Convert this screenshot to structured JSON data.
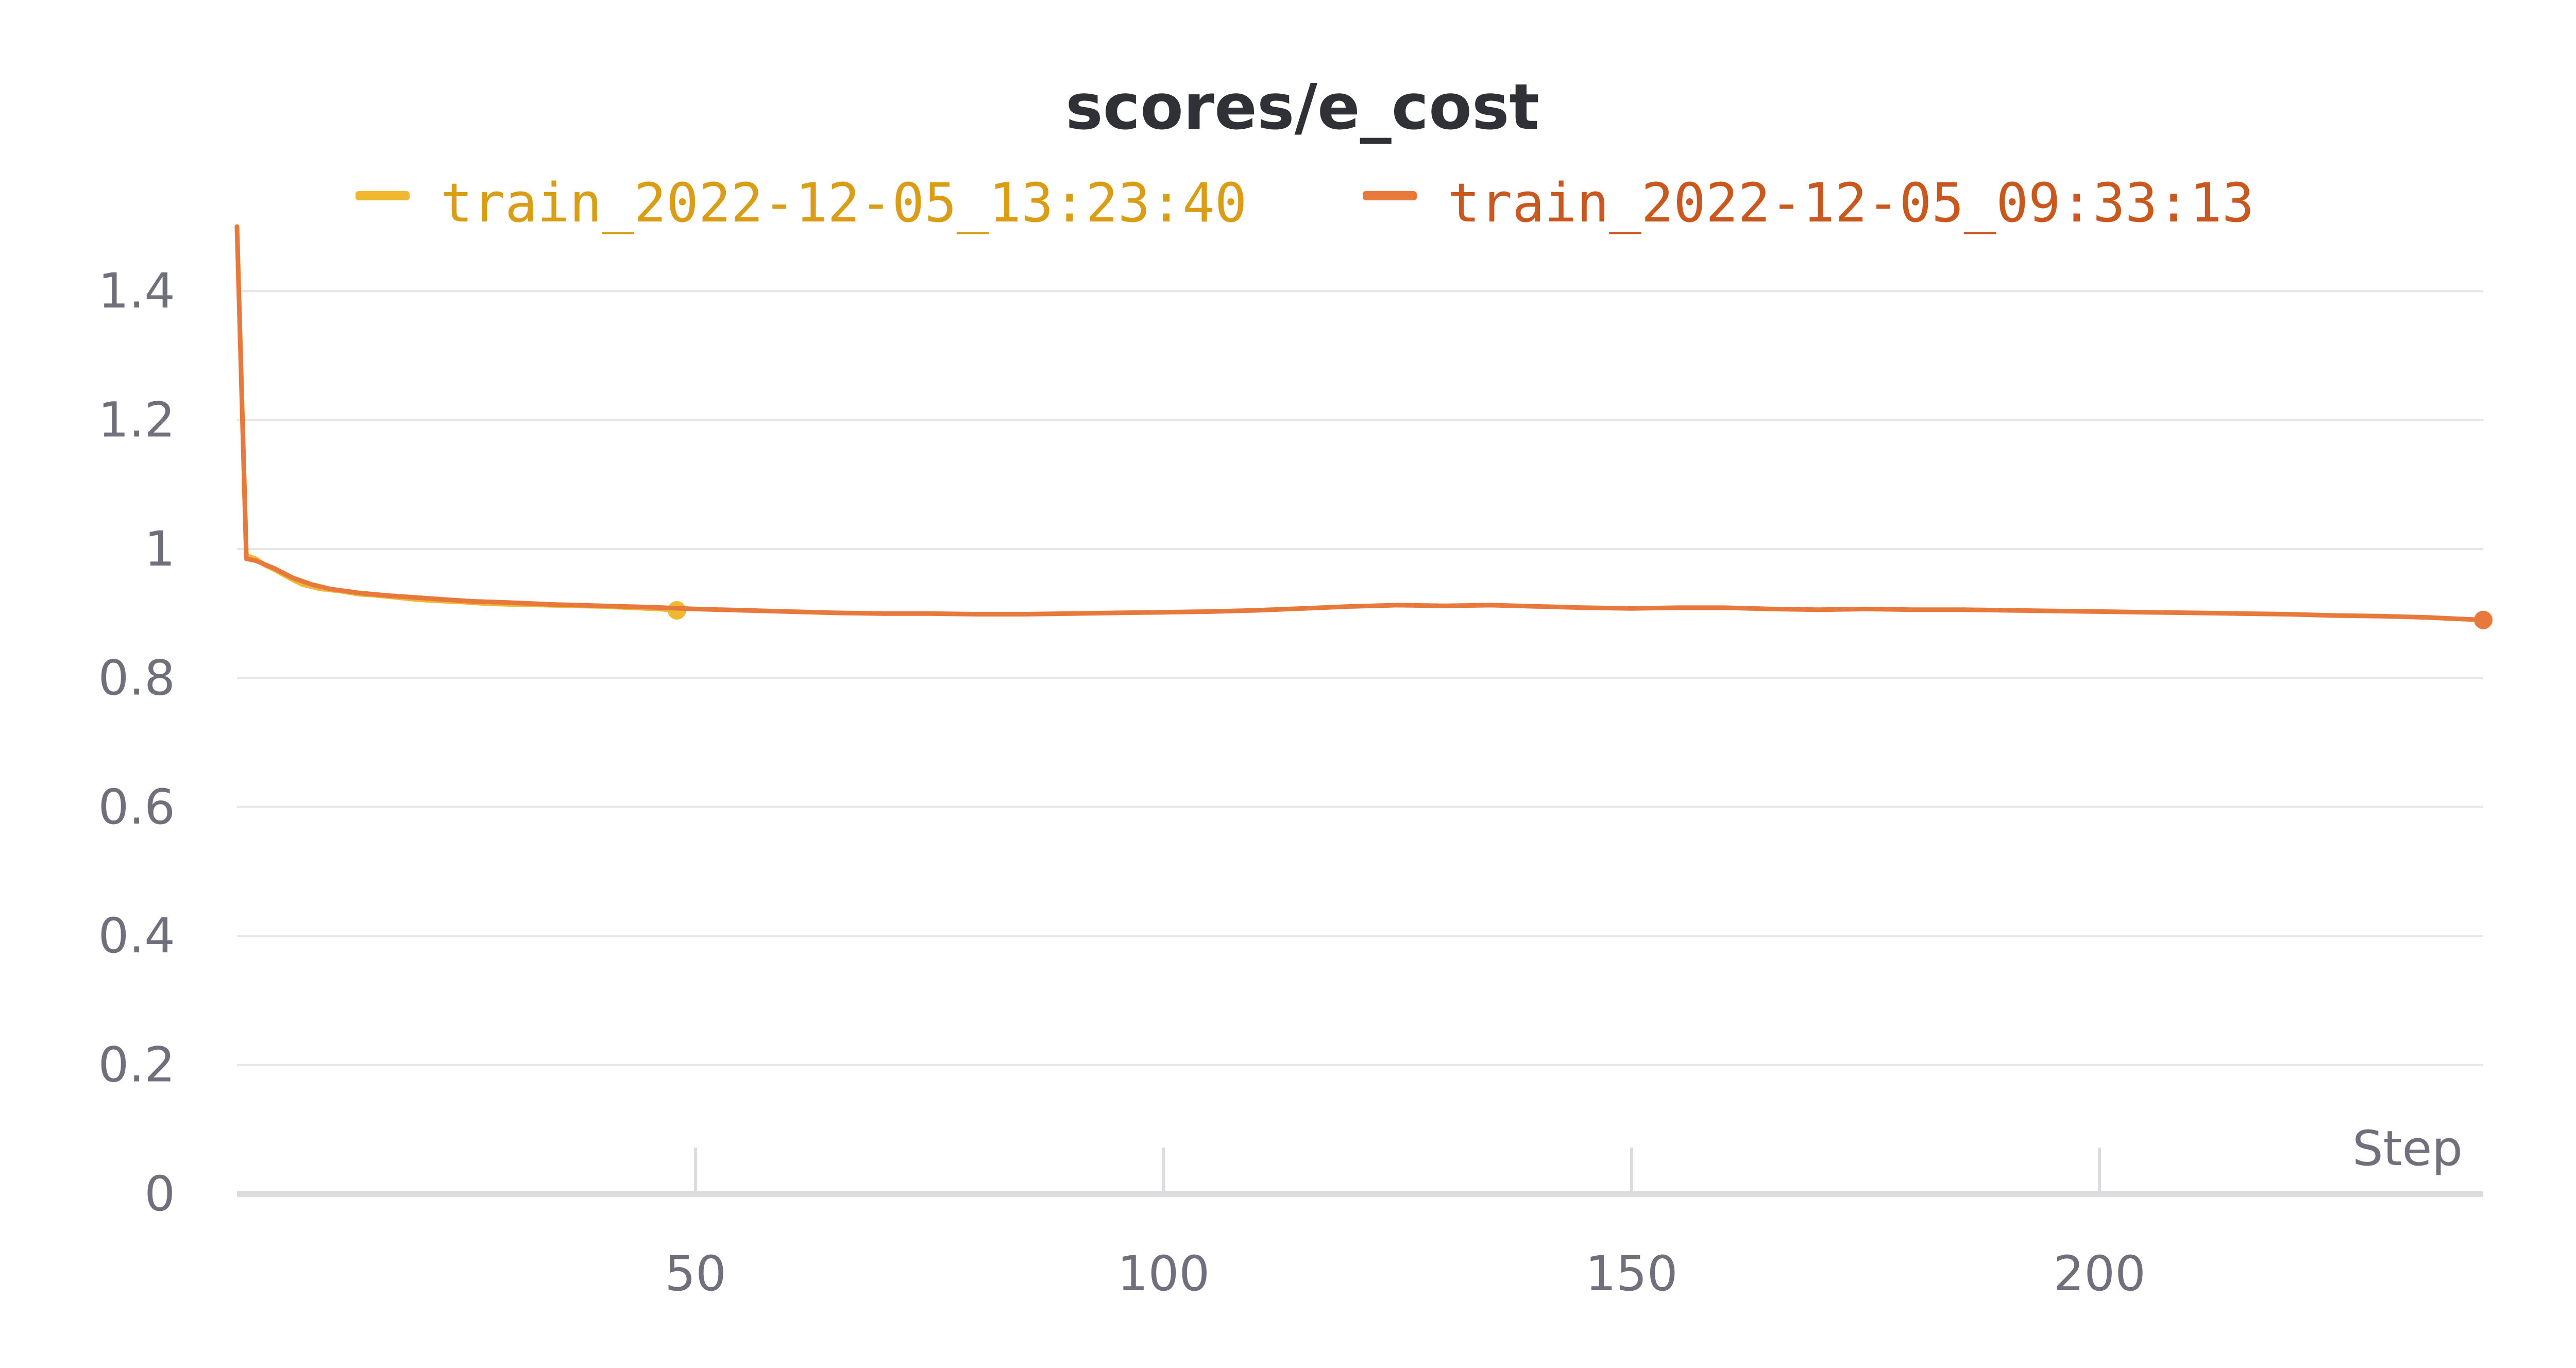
{
  "chart_data": {
    "type": "line",
    "title": "scores/e_cost",
    "xlabel": "Step",
    "ylabel": "",
    "xlim": [
      1,
      241
    ],
    "ylim": [
      0,
      1.5
    ],
    "x_ticks": [
      50,
      100,
      150,
      200
    ],
    "x_tick_labels": [
      "50",
      "100",
      "150",
      "200"
    ],
    "y_ticks": [
      0,
      0.2,
      0.4,
      0.6,
      0.8,
      1,
      1.2,
      1.4
    ],
    "y_tick_labels": [
      "0",
      "0.2",
      "0.4",
      "0.6",
      "0.8",
      "1",
      "1.2",
      "1.4"
    ],
    "grid": true,
    "legend_position": "top",
    "series": [
      {
        "name": "train_2022-12-05_13:23:40",
        "color": "#f0b731",
        "x": [
          1,
          2,
          3,
          4,
          5,
          6,
          7,
          8,
          10,
          12,
          14,
          16,
          18,
          20,
          22,
          25,
          28,
          31,
          34,
          37,
          40,
          43,
          46,
          48
        ],
        "y": [
          1.5,
          0.99,
          0.985,
          0.975,
          0.968,
          0.96,
          0.952,
          0.945,
          0.938,
          0.935,
          0.93,
          0.928,
          0.925,
          0.922,
          0.92,
          0.918,
          0.915,
          0.914,
          0.913,
          0.912,
          0.911,
          0.909,
          0.907,
          0.905
        ]
      },
      {
        "name": "train_2022-12-05_09:33:13",
        "color": "#e8793d",
        "x": [
          1,
          2,
          3,
          5,
          7,
          9,
          11,
          14,
          17,
          20,
          23,
          26,
          30,
          35,
          40,
          45,
          50,
          55,
          60,
          65,
          70,
          75,
          80,
          85,
          90,
          95,
          100,
          105,
          110,
          115,
          120,
          125,
          130,
          135,
          140,
          145,
          150,
          155,
          160,
          165,
          170,
          175,
          180,
          185,
          190,
          195,
          200,
          205,
          210,
          215,
          220,
          225,
          230,
          235,
          241
        ],
        "y": [
          1.5,
          0.985,
          0.982,
          0.97,
          0.955,
          0.945,
          0.938,
          0.932,
          0.928,
          0.925,
          0.922,
          0.919,
          0.917,
          0.914,
          0.912,
          0.91,
          0.907,
          0.905,
          0.903,
          0.901,
          0.9,
          0.9,
          0.899,
          0.899,
          0.9,
          0.901,
          0.902,
          0.903,
          0.905,
          0.908,
          0.911,
          0.913,
          0.912,
          0.913,
          0.911,
          0.909,
          0.908,
          0.909,
          0.909,
          0.907,
          0.906,
          0.907,
          0.906,
          0.906,
          0.905,
          0.904,
          0.903,
          0.902,
          0.901,
          0.9,
          0.899,
          0.897,
          0.896,
          0.894,
          0.89
        ]
      }
    ]
  }
}
